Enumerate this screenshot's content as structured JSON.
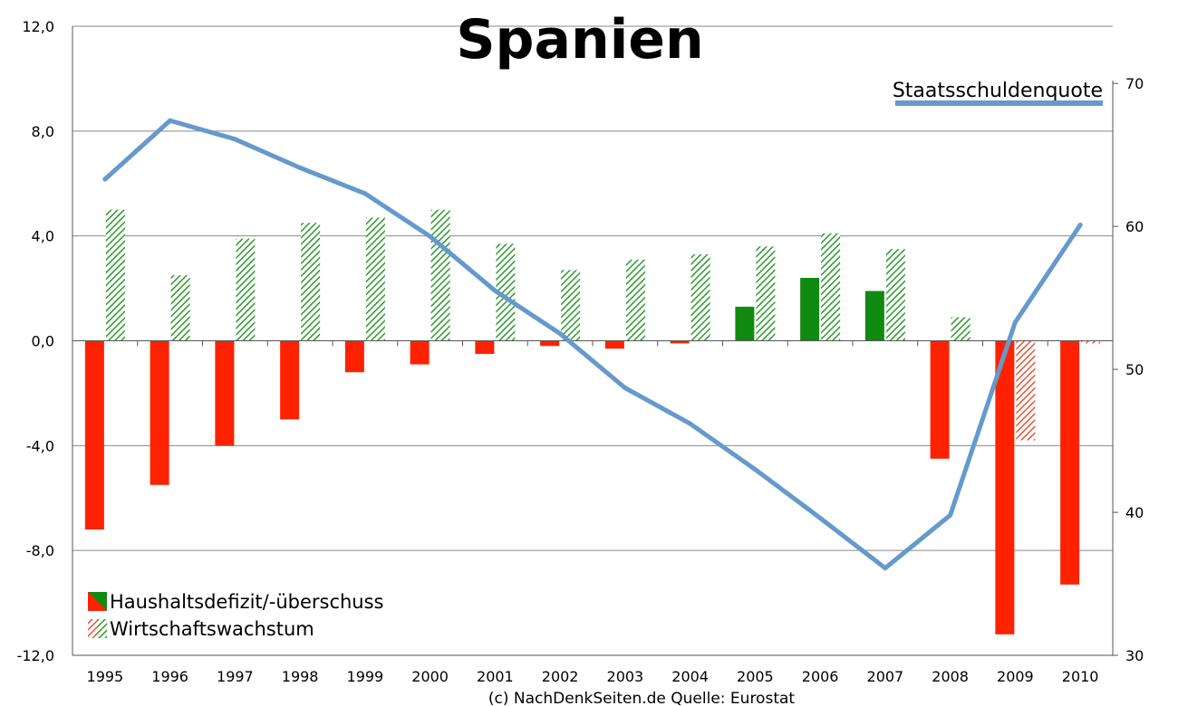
{
  "chart_data": {
    "type": "bar",
    "title": "Spanien",
    "source_note": "(c) NachDenkSeiten.de Quelle: Eurostat",
    "categories": [
      "1995",
      "1996",
      "1997",
      "1998",
      "1999",
      "2000",
      "2001",
      "2002",
      "2003",
      "2004",
      "2005",
      "2006",
      "2007",
      "2008",
      "2009",
      "2010"
    ],
    "left_axis": {
      "ylim": [
        -12,
        12
      ],
      "ticks": [
        12,
        8,
        4,
        0,
        -4,
        -8,
        -12
      ],
      "tick_labels": [
        "12,0",
        "8,0",
        "4,0",
        "0,0",
        "-4,0",
        "-8,0",
        "-12,0"
      ]
    },
    "right_axis": {
      "ylim": [
        30,
        74
      ],
      "ticks": [
        70,
        60,
        50,
        40,
        30
      ],
      "tick_labels": [
        "70",
        "60",
        "50",
        "40",
        "30"
      ]
    },
    "series": [
      {
        "name": "Haushaltsdefizit/-überschuss",
        "axis": "left",
        "style": "solid",
        "values": [
          -7.2,
          -5.5,
          -4.0,
          -3.0,
          -1.2,
          -0.9,
          -0.5,
          -0.2,
          -0.3,
          -0.1,
          1.3,
          2.4,
          1.9,
          -4.5,
          -11.2,
          -9.3
        ]
      },
      {
        "name": "Wirtschaftswachstum",
        "axis": "left",
        "style": "hatched",
        "values": [
          5.0,
          2.5,
          3.9,
          4.5,
          4.7,
          5.0,
          3.7,
          2.7,
          3.1,
          3.3,
          3.6,
          4.1,
          3.5,
          0.9,
          -3.8,
          -0.1
        ]
      },
      {
        "name": "Staatsschuldenquote",
        "axis": "right",
        "type": "line",
        "values": [
          63.3,
          67.4,
          66.1,
          64.1,
          62.3,
          59.3,
          55.5,
          52.5,
          48.7,
          46.2,
          43.0,
          39.6,
          36.1,
          39.8,
          53.3,
          60.1
        ]
      }
    ],
    "legend": {
      "position": "bottom-left",
      "items": [
        "Haushaltsdefizit/-überschuss",
        "Wirtschaftswachstum"
      ]
    },
    "line_legend": {
      "position": "top-right",
      "label": "Staatsschuldenquote"
    },
    "grid": true,
    "colors": {
      "negative": "#ff2200",
      "positive": "#118a11",
      "hatch_negative": "#e8553c",
      "hatch_positive": "#2e9a2e",
      "line": "#6699cc",
      "grid": "#888888",
      "axis": "#555555"
    }
  }
}
